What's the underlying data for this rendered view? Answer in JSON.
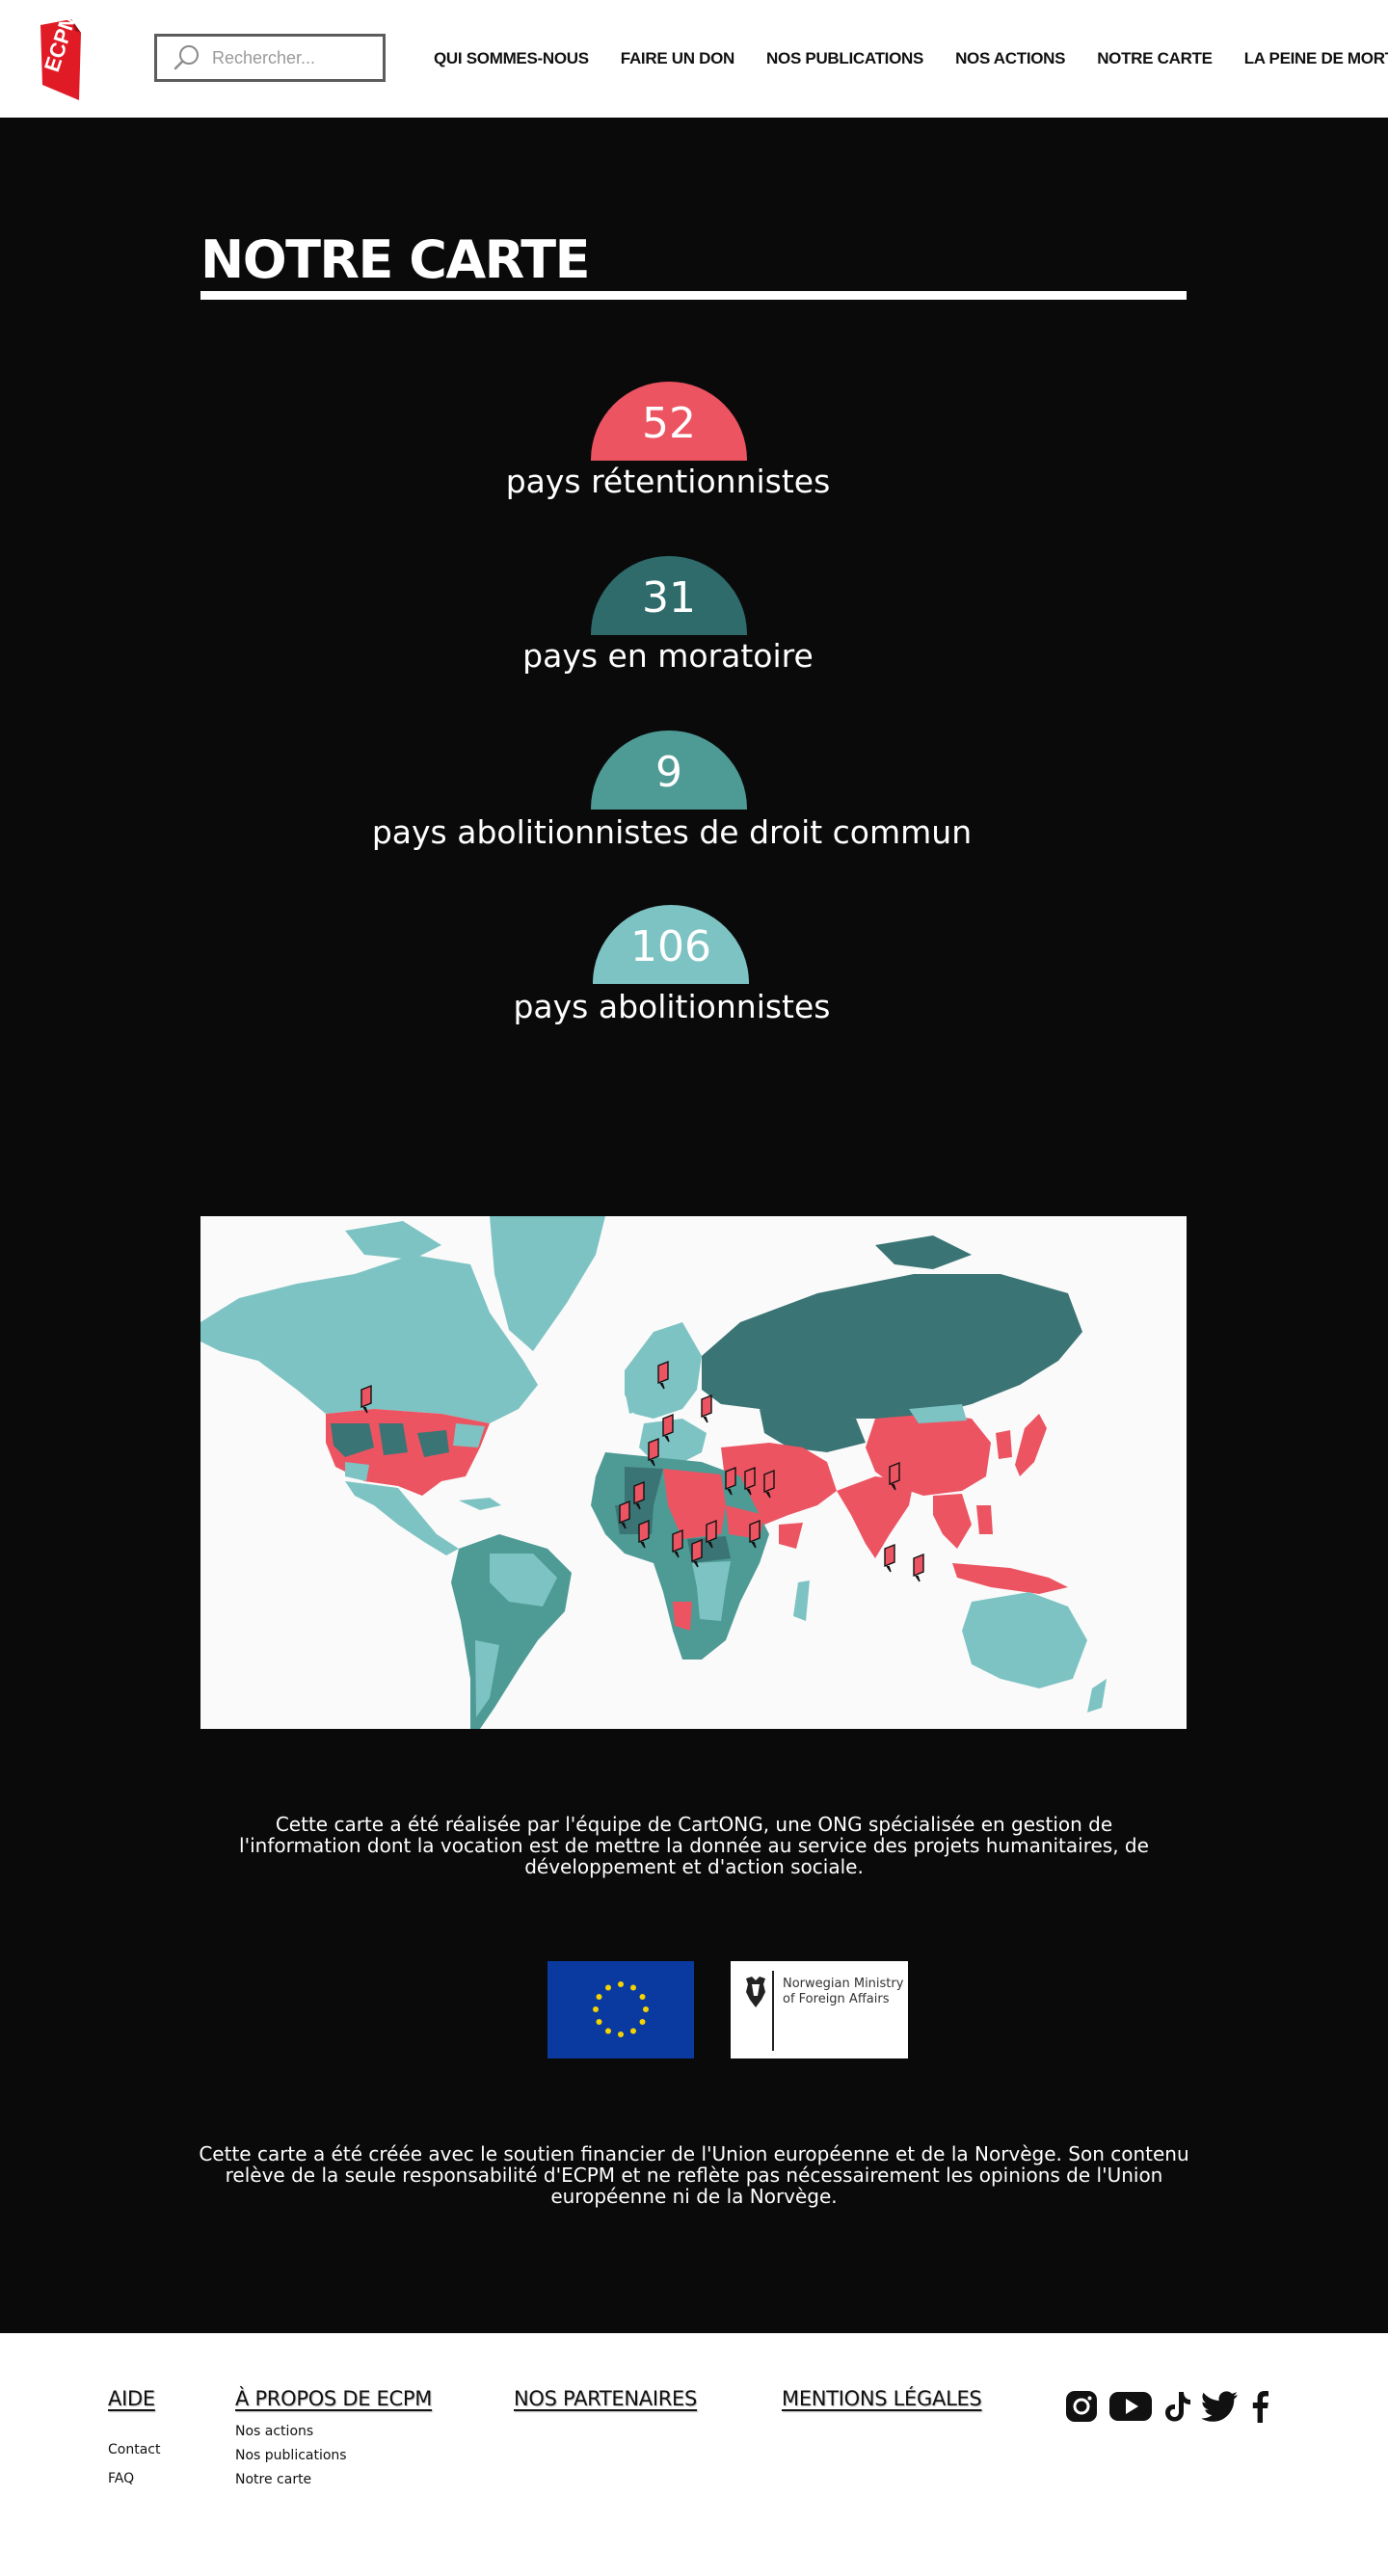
{
  "header": {
    "logo_text": "ECPM",
    "search": {
      "placeholder": "Rechercher..."
    },
    "nav": [
      {
        "label": "QUI SOMMES-NOUS"
      },
      {
        "label": "FAIRE UN DON"
      },
      {
        "label": "NOS PUBLICATIONS"
      },
      {
        "label": "NOS ACTIONS"
      },
      {
        "label": "NOTRE CARTE"
      },
      {
        "label": "LA PEINE DE MORT"
      }
    ]
  },
  "main": {
    "title": "NOTRE CARTE",
    "stats": [
      {
        "value": "52",
        "label": "pays rétentionnistes",
        "color": "#ec5462"
      },
      {
        "value": "31",
        "label": "pays en moratoire",
        "color": "#2f6b6b"
      },
      {
        "value": "9",
        "label": "pays abolitionnistes de droit commun",
        "color": "#4e9a95"
      },
      {
        "value": "106",
        "label": "pays abolitionnistes",
        "color": "#7ec3c3"
      }
    ],
    "map": {
      "colors": {
        "retentionist": "#ec5462",
        "moratorium": "#3a7474",
        "ordinary": "#4e9a95",
        "abolitionist": "#7ec3c3"
      }
    },
    "cartong_text": "Cette carte a été réalisée par l'équipe de CartONG, une ONG spécialisée en gestion de l'information dont la vocation est de mettre la donnée au service des projets humanitaires, de développement et d'action sociale.",
    "partners": {
      "norway": "Norwegian Ministry of Foreign Affairs"
    },
    "funding_text": "Cette carte a été créée avec le soutien financier de l'Union européenne et de la Norvège. Son contenu relève de la seule responsabilité d'ECPM et ne reflète pas nécessairement les opinions de l'Union européenne ni de la Norvège."
  },
  "footer": {
    "aide": {
      "heading": "AIDE",
      "links": [
        "Contact",
        "FAQ"
      ]
    },
    "apropos": {
      "heading": "À PROPOS DE ECPM",
      "links": [
        "Nos actions",
        "Nos publications",
        "Notre carte"
      ]
    },
    "partenaires": {
      "heading": "NOS PARTENAIRES"
    },
    "mentions": {
      "heading": "MENTIONS LÉGALES"
    },
    "social": [
      "instagram-icon",
      "youtube-icon",
      "tiktok-icon",
      "twitter-icon",
      "facebook-icon"
    ]
  }
}
